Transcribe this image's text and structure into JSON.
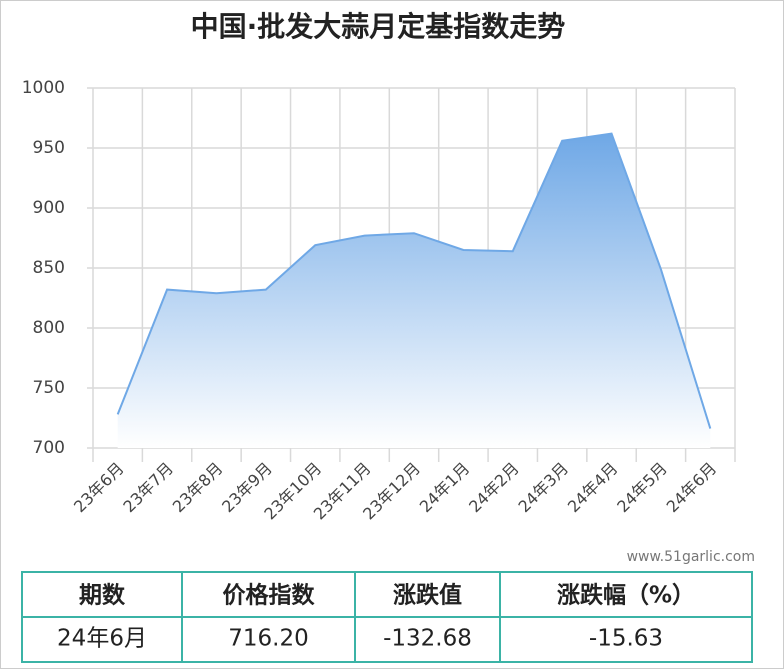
{
  "chart_data": {
    "type": "area",
    "title": "中国·批发大蒜月定基指数走势",
    "categories": [
      "23年6月",
      "23年7月",
      "23年8月",
      "23年9月",
      "23年10月",
      "23年11月",
      "23年12月",
      "24年1月",
      "24年2月",
      "24年3月",
      "24年4月",
      "24年5月",
      "24年6月"
    ],
    "values": [
      728,
      832,
      829,
      832,
      869,
      877,
      879,
      865,
      864,
      956,
      962,
      848.88,
      716.2
    ],
    "color": "#6fa8e6",
    "ylim": [
      700,
      1000
    ],
    "yticks": [
      700,
      750,
      800,
      850,
      900,
      950,
      1000
    ],
    "grid": true
  },
  "watermark": "www.51garlic.com",
  "table": {
    "header": [
      "期数",
      "价格指数",
      "涨跌值",
      "涨跌幅（%）"
    ],
    "rows": [
      [
        "24年6月",
        "716.20",
        "-132.68",
        "-15.63"
      ]
    ]
  }
}
